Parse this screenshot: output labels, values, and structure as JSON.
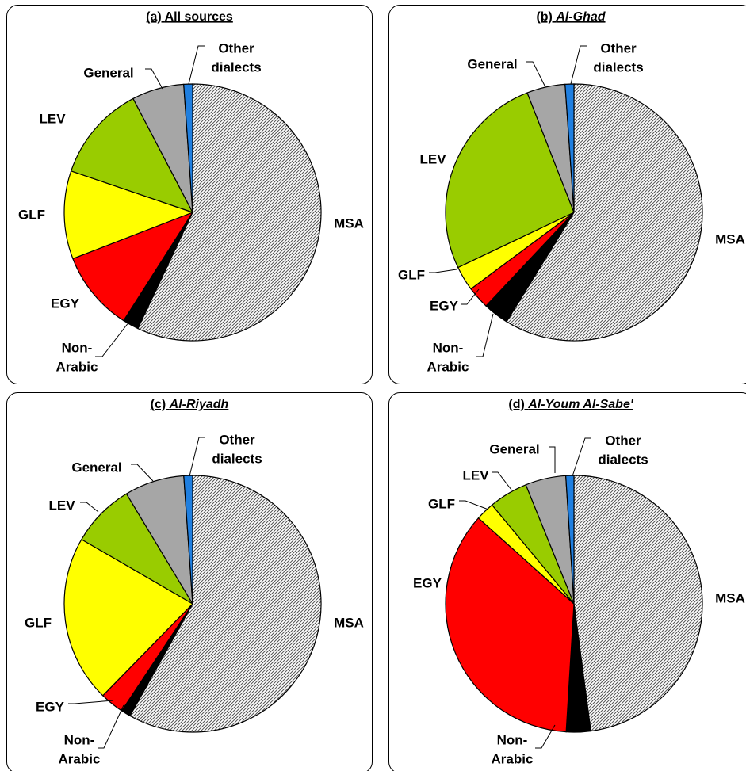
{
  "chart_data": [
    {
      "type": "pie",
      "title_prefix": "(a) ",
      "title_main": "All sources",
      "title_italic": false,
      "categories": [
        "MSA",
        "Non-Arabic",
        "EGY",
        "GLF",
        "LEV",
        "General",
        "Other dialects"
      ],
      "values": [
        56.5,
        2,
        10,
        11,
        12,
        6.5,
        1.1
      ]
    },
    {
      "type": "pie",
      "title_prefix": "(b) ",
      "title_main": "Al-Ghad",
      "title_italic": true,
      "categories": [
        "MSA",
        "Non-Arabic",
        "EGY",
        "GLF",
        "LEV",
        "General",
        "Other dialects"
      ],
      "values": [
        58.5,
        3.2,
        2.8,
        3.1,
        26,
        4.8,
        1.1
      ]
    },
    {
      "type": "pie",
      "title_prefix": "(c) ",
      "title_main": "Al-Riyadh",
      "title_italic": true,
      "categories": [
        "MSA",
        "Non-Arabic",
        "EGY",
        "GLF",
        "LEV",
        "General",
        "Other dialects"
      ],
      "values": [
        58,
        1.2,
        3,
        21,
        8,
        7.5,
        1.1
      ]
    },
    {
      "type": "pie",
      "title_prefix": "(d) ",
      "title_main": "Al-Youm Al-Sabe'",
      "title_italic": true,
      "categories": [
        "MSA",
        "Non-Arabic",
        "EGY",
        "GLF",
        "LEV",
        "General",
        "Other dialects"
      ],
      "values": [
        47,
        3,
        35,
        2.3,
        4.8,
        5,
        1
      ]
    }
  ],
  "colors": {
    "MSA": "#ffffff",
    "MSA_hatch": "#555555",
    "Non-Arabic": "#000000",
    "EGY": "#ff0000",
    "GLF": "#ffff00",
    "LEV": "#99cc00",
    "General": "#a6a6a6",
    "Other dialects": "#1f7fe0",
    "stroke": "#000000"
  },
  "labels": {
    "MSA": [
      "MSA"
    ],
    "Non-Arabic": [
      "Non-",
      "Arabic"
    ],
    "EGY": [
      "EGY"
    ],
    "GLF": [
      "GLF"
    ],
    "LEV": [
      "LEV"
    ],
    "General": [
      "General"
    ],
    "Other dialects": [
      "Other",
      "dialects"
    ]
  }
}
